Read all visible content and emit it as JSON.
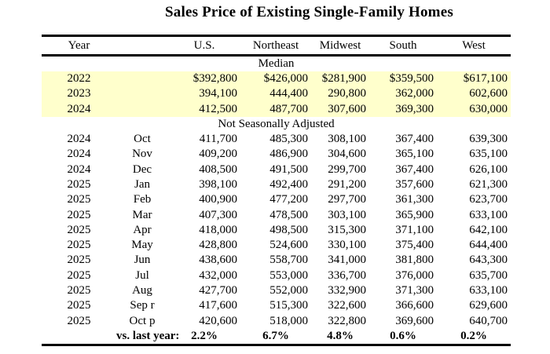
{
  "title": "Sales Price of Existing Single-Family Homes",
  "colors": {
    "row_highlight": "#FFFFCC",
    "border": "#000000",
    "text": "#000000",
    "background": "#FFFFFF"
  },
  "table": {
    "headers": [
      "Year",
      "U.S.",
      "Northeast",
      "Midwest",
      "South",
      "West"
    ],
    "sections": {
      "median_label": "Median",
      "nsa_label": "Not Seasonally Adjusted"
    },
    "median_rows": [
      {
        "year": "2022",
        "month": "",
        "values": [
          "$392,800",
          "$426,000",
          "$281,900",
          "$359,500",
          "$617,100"
        ]
      },
      {
        "year": "2023",
        "month": "",
        "values": [
          "394,100",
          "444,400",
          "290,800",
          "362,000",
          "602,600"
        ]
      },
      {
        "year": "2024",
        "month": "",
        "values": [
          "412,500",
          "487,700",
          "307,600",
          "369,300",
          "630,000"
        ]
      }
    ],
    "nsa_rows": [
      {
        "year": "2024",
        "month": "Oct",
        "values": [
          "411,700",
          "485,300",
          "308,100",
          "367,400",
          "639,300"
        ]
      },
      {
        "year": "2024",
        "month": "Nov",
        "values": [
          "409,200",
          "486,900",
          "304,600",
          "365,100",
          "635,100"
        ]
      },
      {
        "year": "2024",
        "month": "Dec",
        "values": [
          "408,500",
          "491,500",
          "299,700",
          "367,400",
          "626,100"
        ]
      },
      {
        "year": "2025",
        "month": "Jan",
        "values": [
          "398,100",
          "492,400",
          "291,200",
          "357,600",
          "621,300"
        ]
      },
      {
        "year": "2025",
        "month": "Feb",
        "values": [
          "400,900",
          "477,200",
          "297,700",
          "361,300",
          "623,700"
        ]
      },
      {
        "year": "2025",
        "month": "Mar",
        "values": [
          "407,300",
          "478,500",
          "303,100",
          "365,900",
          "633,100"
        ]
      },
      {
        "year": "2025",
        "month": "Apr",
        "values": [
          "418,000",
          "498,500",
          "315,300",
          "371,100",
          "642,100"
        ]
      },
      {
        "year": "2025",
        "month": "May",
        "values": [
          "428,800",
          "524,600",
          "330,100",
          "375,400",
          "644,400"
        ]
      },
      {
        "year": "2025",
        "month": "Jun",
        "values": [
          "438,600",
          "558,700",
          "341,000",
          "381,800",
          "643,300"
        ]
      },
      {
        "year": "2025",
        "month": "Jul",
        "values": [
          "432,000",
          "553,000",
          "336,700",
          "376,000",
          "635,700"
        ]
      },
      {
        "year": "2025",
        "month": "Aug",
        "values": [
          "427,700",
          "552,000",
          "332,900",
          "371,300",
          "633,100"
        ]
      },
      {
        "year": "2025",
        "month": "Sep r",
        "values": [
          "417,600",
          "515,300",
          "322,600",
          "366,600",
          "629,600"
        ]
      },
      {
        "year": "2025",
        "month": "Oct p",
        "values": [
          "420,600",
          "518,000",
          "322,800",
          "369,600",
          "640,700"
        ]
      }
    ],
    "footer": {
      "label": "vs. last year:",
      "values": [
        "2.2%",
        "6.7%",
        "4.8%",
        "0.6%",
        "0.2%"
      ]
    }
  }
}
